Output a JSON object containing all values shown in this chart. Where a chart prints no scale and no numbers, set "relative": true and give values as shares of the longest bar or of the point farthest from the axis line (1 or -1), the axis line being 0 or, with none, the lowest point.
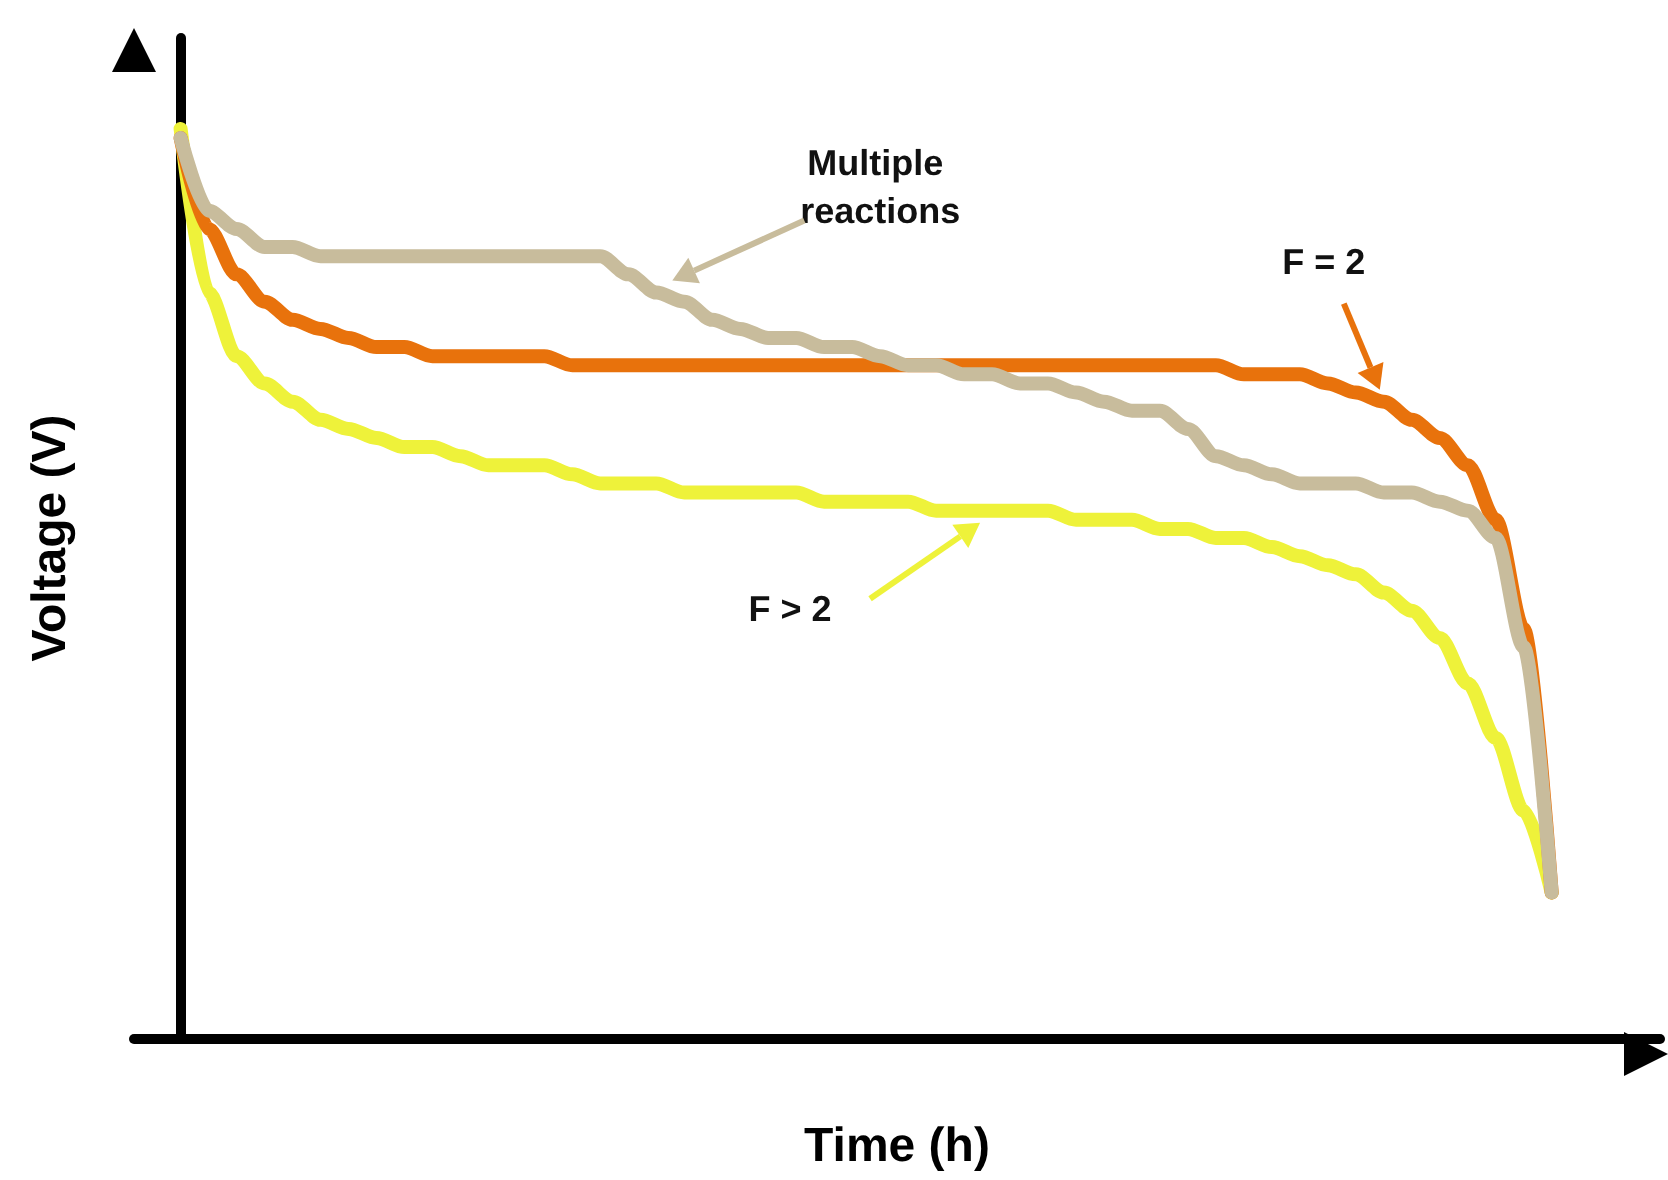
{
  "chart_data": {
    "type": "line",
    "relative": true,
    "xlabel": "Time (h)",
    "ylabel": "Voltage (V)",
    "categories": [
      null,
      null,
      null,
      null,
      null,
      null,
      null,
      null,
      null,
      null,
      null,
      null,
      null,
      null,
      null,
      null,
      null,
      null,
      null,
      null,
      null,
      null,
      null,
      null,
      null,
      null,
      null,
      null,
      null,
      null,
      null,
      null,
      null,
      null,
      null,
      null,
      null,
      null,
      null,
      null,
      null,
      null,
      null,
      null,
      null,
      null,
      null,
      null,
      null,
      null
    ],
    "grid": false,
    "legend": false,
    "marker": "none",
    "line_style": "solid",
    "series": [
      {
        "name": "F > 2",
        "color": "#eef23a",
        "values": [
          1.0,
          0.82,
          0.75,
          0.72,
          0.7,
          0.68,
          0.67,
          0.66,
          0.65,
          0.65,
          0.64,
          0.63,
          0.63,
          0.63,
          0.62,
          0.61,
          0.61,
          0.61,
          0.6,
          0.6,
          0.6,
          0.6,
          0.6,
          0.59,
          0.59,
          0.59,
          0.59,
          0.58,
          0.58,
          0.58,
          0.58,
          0.58,
          0.57,
          0.57,
          0.57,
          0.56,
          0.56,
          0.55,
          0.55,
          0.54,
          0.53,
          0.52,
          0.51,
          0.49,
          0.47,
          0.44,
          0.39,
          0.33,
          0.25,
          0.16
        ]
      },
      {
        "name": "F = 2",
        "color": "#e8720c",
        "values": [
          0.99,
          0.89,
          0.84,
          0.81,
          0.79,
          0.78,
          0.77,
          0.76,
          0.76,
          0.75,
          0.75,
          0.75,
          0.75,
          0.75,
          0.74,
          0.74,
          0.74,
          0.74,
          0.74,
          0.74,
          0.74,
          0.74,
          0.74,
          0.74,
          0.74,
          0.74,
          0.74,
          0.74,
          0.74,
          0.74,
          0.74,
          0.74,
          0.74,
          0.74,
          0.74,
          0.74,
          0.74,
          0.74,
          0.73,
          0.73,
          0.73,
          0.72,
          0.71,
          0.7,
          0.68,
          0.66,
          0.63,
          0.57,
          0.45,
          0.16
        ]
      },
      {
        "name": "Multiple reactions",
        "color": "#c8bc9c",
        "values": [
          0.99,
          0.91,
          0.89,
          0.87,
          0.87,
          0.86,
          0.86,
          0.86,
          0.86,
          0.86,
          0.86,
          0.86,
          0.86,
          0.86,
          0.86,
          0.86,
          0.84,
          0.82,
          0.81,
          0.79,
          0.78,
          0.77,
          0.77,
          0.76,
          0.76,
          0.75,
          0.74,
          0.74,
          0.73,
          0.73,
          0.72,
          0.72,
          0.71,
          0.7,
          0.69,
          0.69,
          0.67,
          0.64,
          0.63,
          0.62,
          0.61,
          0.61,
          0.61,
          0.6,
          0.6,
          0.59,
          0.58,
          0.55,
          0.43,
          0.16
        ]
      }
    ]
  }
}
